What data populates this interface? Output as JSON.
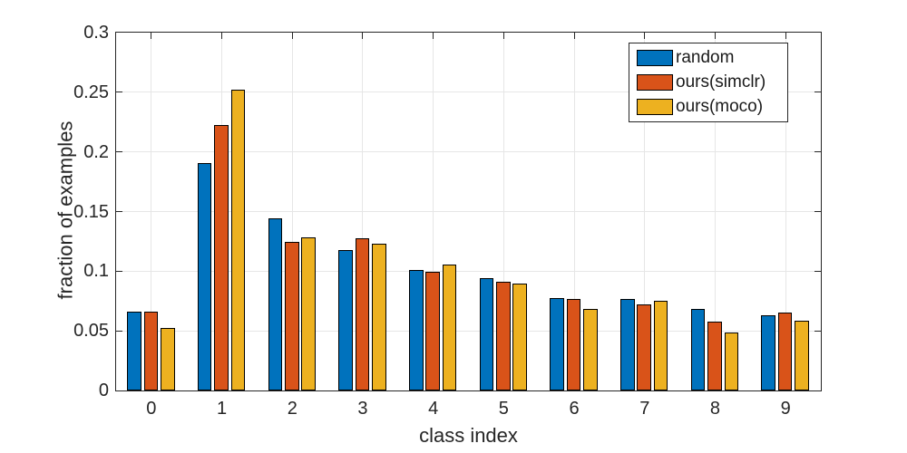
{
  "chart_data": {
    "type": "bar",
    "title": "",
    "xlabel": "class index",
    "ylabel": "fraction of examples",
    "categories": [
      "0",
      "1",
      "2",
      "3",
      "4",
      "5",
      "6",
      "7",
      "8",
      "9"
    ],
    "series": [
      {
        "name": "random",
        "color": "#0072BD",
        "values": [
          0.066,
          0.19,
          0.144,
          0.117,
          0.101,
          0.094,
          0.077,
          0.076,
          0.068,
          0.063
        ]
      },
      {
        "name": "ours(simclr)",
        "color": "#D95319",
        "values": [
          0.066,
          0.222,
          0.124,
          0.127,
          0.099,
          0.091,
          0.076,
          0.072,
          0.057,
          0.065
        ]
      },
      {
        "name": "ours(moco)",
        "color": "#EDB120",
        "values": [
          0.052,
          0.252,
          0.128,
          0.123,
          0.105,
          0.089,
          0.068,
          0.075,
          0.048,
          0.058
        ]
      }
    ],
    "ylim": [
      0,
      0.3
    ],
    "yticks": [
      0,
      0.05,
      0.1,
      0.15,
      0.2,
      0.25,
      0.3
    ],
    "ytick_labels": [
      "0",
      "0.05",
      "0.1",
      "0.15",
      "0.2",
      "0.25",
      "0.3"
    ],
    "grid": true,
    "legend_position": "top-right",
    "colors": {
      "axis": "#262626",
      "grid": "#e6e6e6",
      "bar_edge": "#000000",
      "background": "#ffffff"
    }
  }
}
